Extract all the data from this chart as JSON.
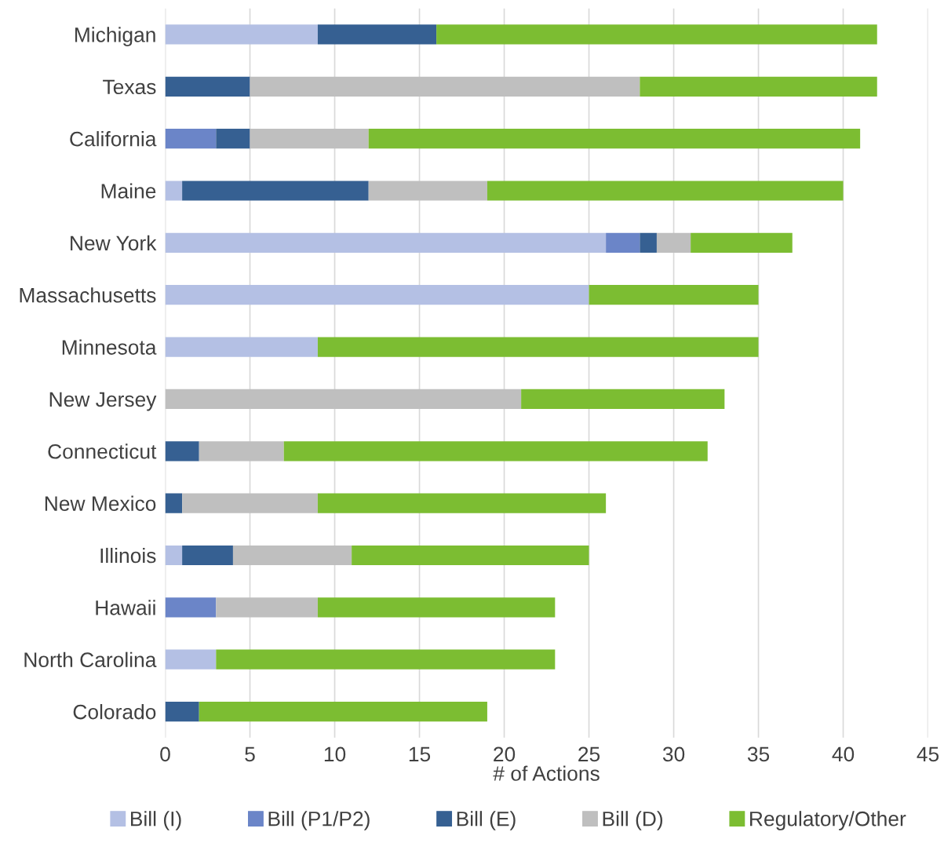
{
  "chart_data": {
    "type": "bar",
    "orientation": "horizontal",
    "stacked": true,
    "xlabel": "# of Actions",
    "categories": [
      "Michigan",
      "Texas",
      "California",
      "Maine",
      "New York",
      "Massachusetts",
      "Minnesota",
      "New Jersey",
      "Connecticut",
      "New Mexico",
      "Illinois",
      "Hawaii",
      "North Carolina",
      "Colorado"
    ],
    "series": [
      {
        "name": "Bill (I)",
        "color": "#b4c0e4",
        "values": [
          9,
          0,
          0,
          1,
          26,
          25,
          9,
          0,
          0,
          0,
          1,
          0,
          3,
          0
        ]
      },
      {
        "name": "Bill (P1/P2)",
        "color": "#6b85c8",
        "values": [
          0,
          0,
          3,
          0,
          2,
          0,
          0,
          0,
          0,
          0,
          0,
          3,
          0,
          0
        ]
      },
      {
        "name": "Bill (E)",
        "color": "#366092",
        "values": [
          7,
          5,
          2,
          11,
          1,
          0,
          0,
          0,
          2,
          1,
          3,
          0,
          0,
          2
        ]
      },
      {
        "name": "Bill (D)",
        "color": "#bfbfbf",
        "values": [
          0,
          23,
          7,
          7,
          2,
          0,
          0,
          21,
          5,
          8,
          7,
          6,
          0,
          0
        ]
      },
      {
        "name": "Regulatory/Other",
        "color": "#7cbd32",
        "values": [
          26,
          14,
          29,
          21,
          6,
          10,
          26,
          12,
          25,
          17,
          14,
          14,
          20,
          17
        ]
      }
    ],
    "xlim": [
      0,
      45
    ],
    "xticks": [
      0,
      5,
      10,
      15,
      20,
      25,
      30,
      35,
      40,
      45
    ],
    "grid": "x",
    "legend": "bottom"
  }
}
